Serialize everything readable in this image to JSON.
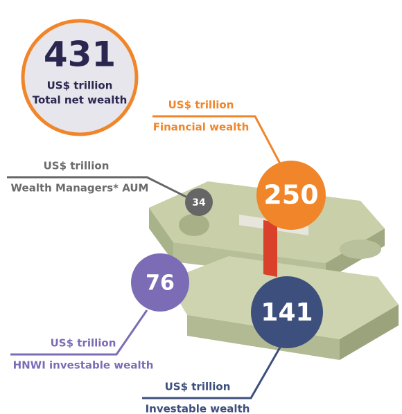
{
  "total": {
    "value": 431,
    "unit": "US$ trillion",
    "label": "Total net wealth"
  },
  "items": [
    {
      "value": 250,
      "unit": "US$ trillion",
      "label": "Financial wealth"
    },
    {
      "value": 34,
      "unit": "US$ trillion",
      "label": "Wealth Managers* AUM"
    },
    {
      "value": 76,
      "unit": "US$ trillion",
      "label": "HNWI investable wealth"
    },
    {
      "value": 141,
      "unit": "US$ trillion",
      "label": "Investable wealth"
    }
  ]
}
